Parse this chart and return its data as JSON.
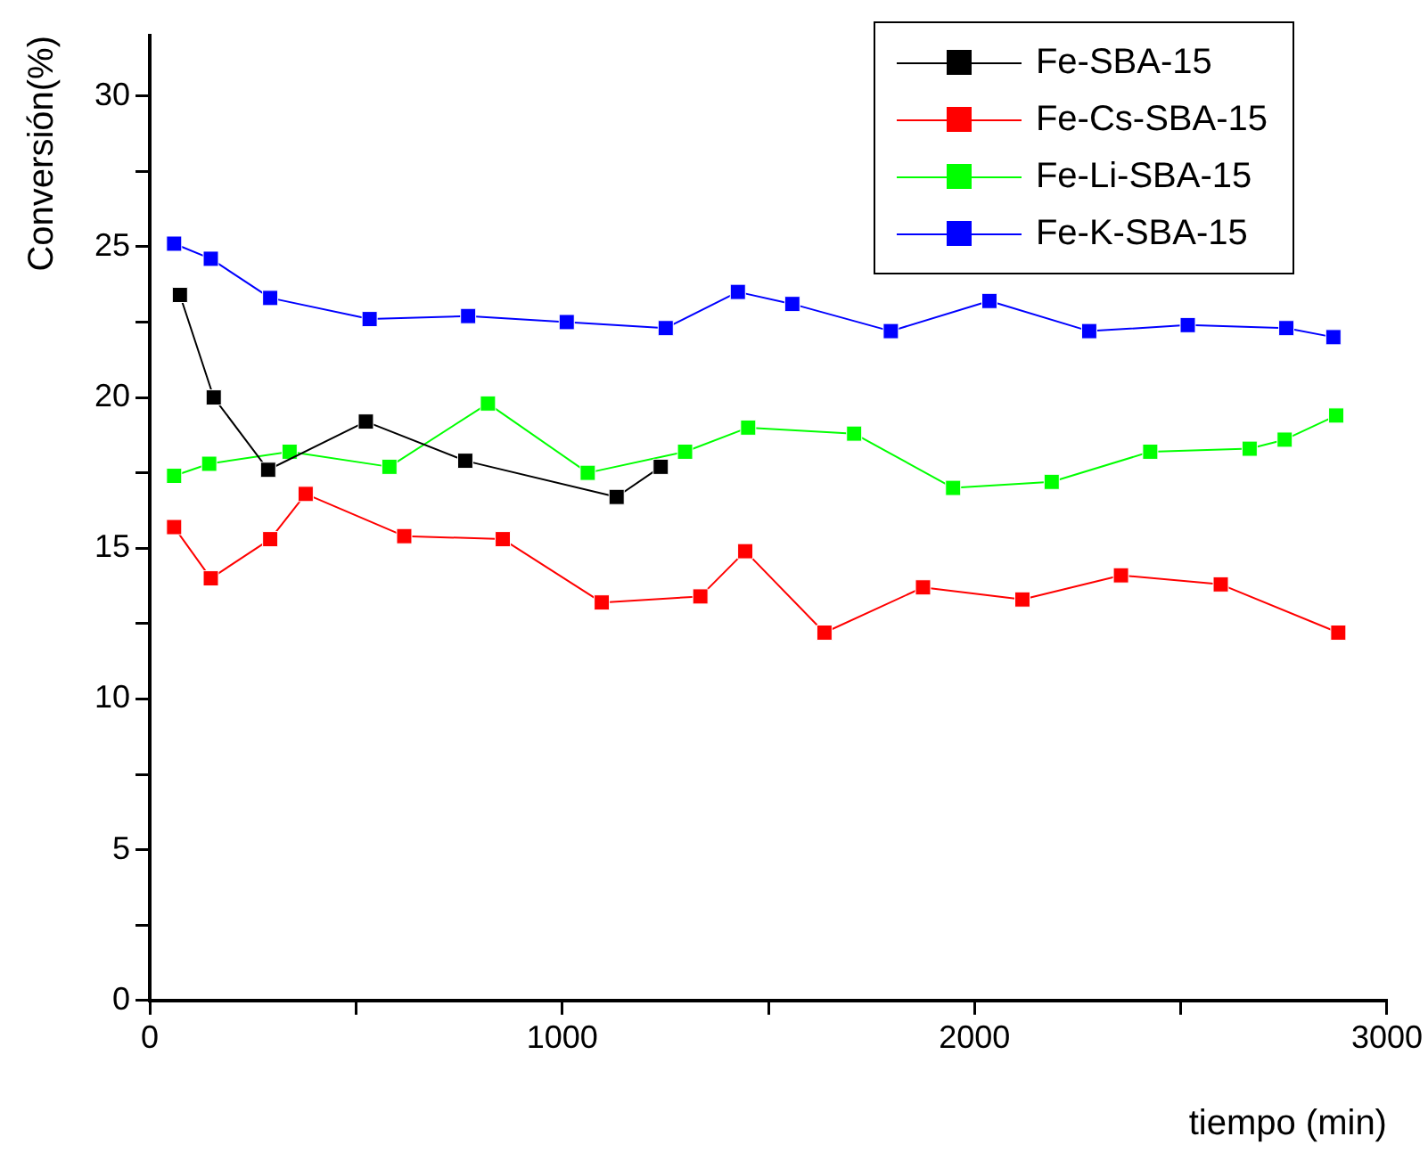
{
  "chart_data": {
    "type": "line",
    "xlabel": "tiempo (min)",
    "ylabel": "Conversión(%)",
    "xlim": [
      0,
      3000
    ],
    "xticks": [
      0,
      {
        "value": 500,
        "label": null
      },
      1000,
      {
        "value": 1500,
        "label": null
      },
      2000,
      {
        "value": 2500,
        "label": null
      },
      3000
    ],
    "ylim": [
      0,
      32
    ],
    "yticks": [
      0,
      {
        "value": 2.5,
        "label": null
      },
      5,
      {
        "value": 7.5,
        "label": null
      },
      10,
      {
        "value": 12.5,
        "label": null
      },
      15,
      {
        "value": 17.5,
        "label": null
      },
      20,
      {
        "value": 22.5,
        "label": null
      },
      25,
      {
        "value": 27.5,
        "label": null
      },
      30
    ],
    "legend": "top right",
    "marker": "square",
    "line_style": "solid",
    "series": [
      {
        "name": "Fe-SBA-15",
        "color": "#000000",
        "x": [
          73,
          155,
          287,
          524,
          765,
          1132,
          1239
        ],
        "values": [
          23.4,
          20.0,
          17.6,
          19.2,
          17.9,
          16.7,
          17.7
        ]
      },
      {
        "name": "Fe-Cs-SBA-15",
        "color": "#ff0000",
        "x": [
          59,
          148,
          292,
          378,
          617,
          856,
          1096,
          1335,
          1444,
          1636,
          1875,
          2116,
          2355,
          2597,
          2882
        ],
        "values": [
          15.7,
          14.0,
          15.3,
          16.8,
          15.4,
          15.3,
          13.2,
          13.4,
          14.9,
          12.2,
          13.7,
          13.3,
          14.1,
          13.8,
          12.2
        ]
      },
      {
        "name": "Fe-Li-SBA-15",
        "color": "#00ff00",
        "x": [
          59,
          144,
          339,
          581,
          820,
          1062,
          1298,
          1451,
          1708,
          1948,
          2187,
          2426,
          2667,
          2752,
          2877
        ],
        "values": [
          17.4,
          17.8,
          18.2,
          17.7,
          19.8,
          17.5,
          18.2,
          19.0,
          18.8,
          17.0,
          17.2,
          18.2,
          18.3,
          18.6,
          19.4
        ]
      },
      {
        "name": "Fe-K-SBA-15",
        "color": "#0000ff",
        "x": [
          59,
          148,
          292,
          533,
          772,
          1011,
          1251,
          1426,
          1558,
          1797,
          2036,
          2278,
          2517,
          2756,
          2870
        ],
        "values": [
          25.1,
          24.6,
          23.3,
          22.6,
          22.7,
          22.5,
          22.3,
          23.5,
          23.1,
          22.2,
          23.2,
          22.2,
          22.4,
          22.3,
          22.0
        ]
      }
    ]
  }
}
